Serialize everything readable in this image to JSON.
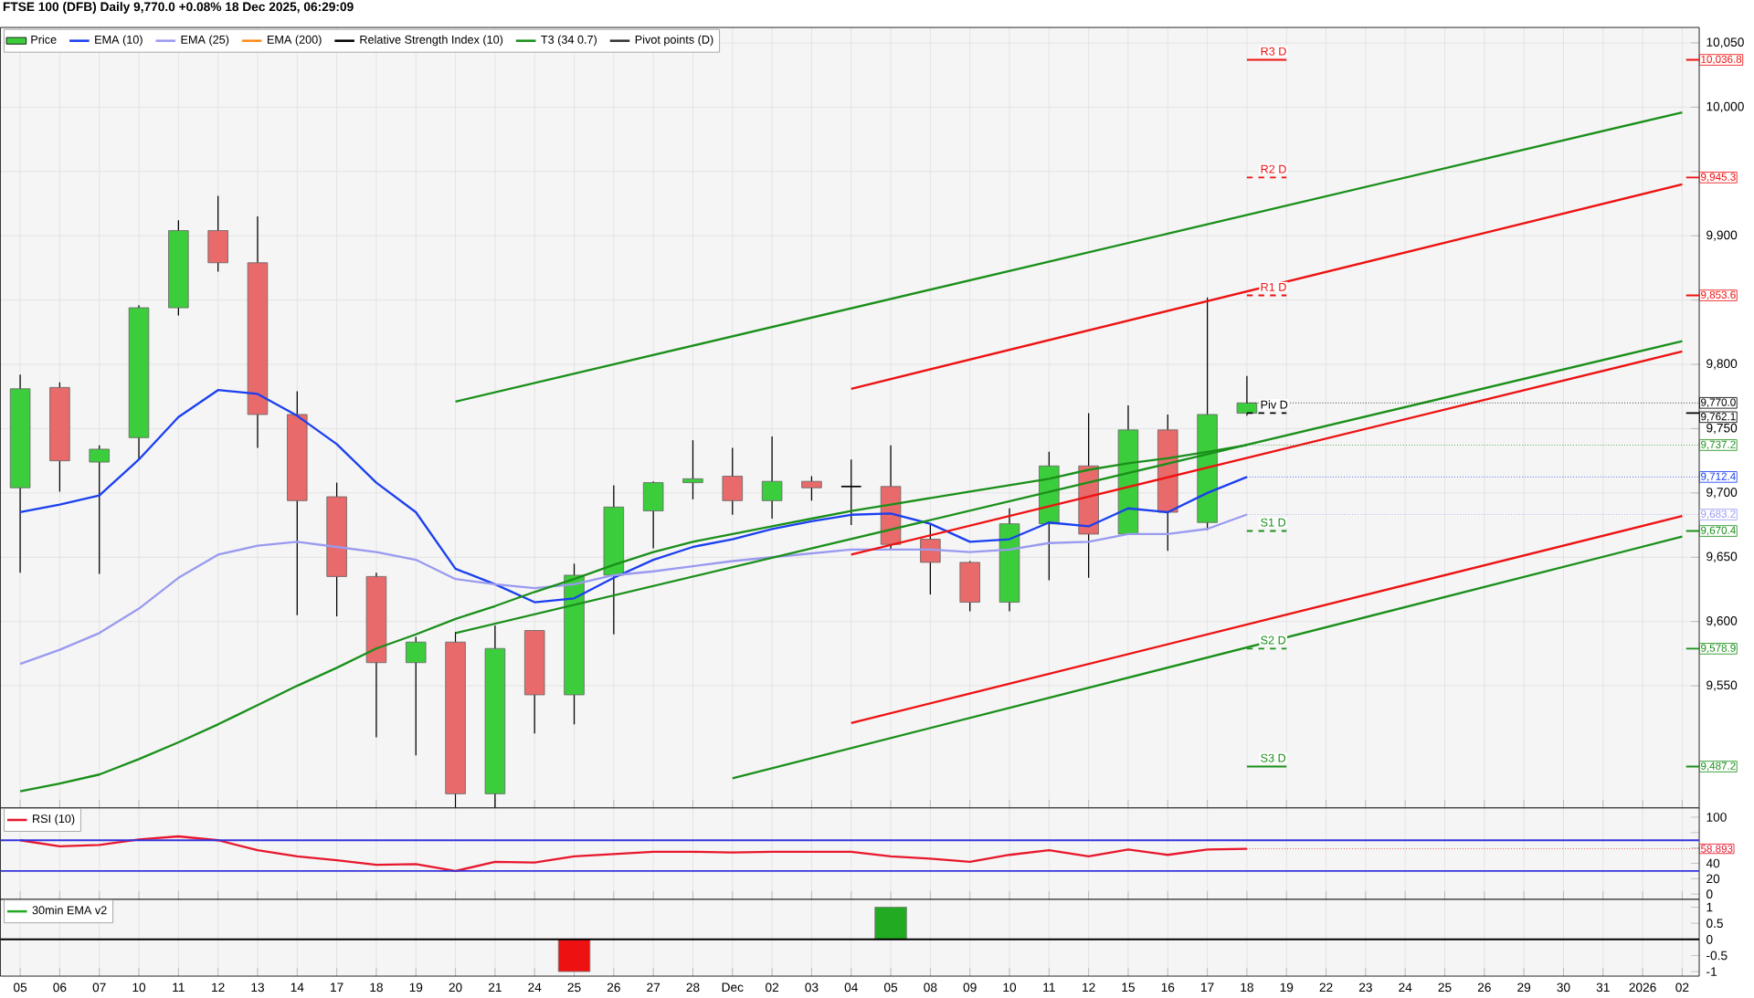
{
  "chart_data": [
    {
      "type": "candlestick",
      "title": "FTSE 100 (DFB) Daily 9,770.0 +0.08% 18 Dec 2025, 06:29:09",
      "categories": [
        null,
        null,
        null,
        null,
        null,
        null,
        null,
        null,
        null,
        null,
        null,
        null,
        null,
        null,
        null,
        null,
        null,
        null,
        null,
        null,
        null,
        null,
        null,
        null,
        null,
        null,
        null,
        null,
        null,
        null,
        null,
        null,
        null,
        null,
        null,
        null,
        null,
        null,
        null,
        null,
        null,
        null,
        null
      ],
      "ylim": [
        9455,
        10062
      ],
      "yticks": [
        {
          "value": 9550,
          "label": "9,550"
        },
        {
          "value": 9600,
          "label": "9,600"
        },
        {
          "value": 9650,
          "label": "9,650"
        },
        {
          "value": 9700,
          "label": "9,700"
        },
        {
          "value": 9750,
          "label": "9,750"
        },
        {
          "value": 9800,
          "label": "9,800"
        },
        {
          "value": 9850,
          "label": null
        },
        {
          "value": 9900,
          "label": "9,900"
        },
        {
          "value": 9950,
          "label": null
        },
        {
          "value": 10000,
          "label": "10,000"
        },
        {
          "value": 10050,
          "label": "10,050"
        }
      ],
      "grid": true,
      "legend": "top left",
      "tick_labels": "y",
      "series": [
        {
          "name": "Price",
          "type": "candlestick",
          "ohlc": [
            [
              9704,
              9792,
              9638,
              9781
            ],
            [
              9782,
              9786,
              9701,
              9725
            ],
            [
              9724,
              9737,
              9637,
              9734
            ],
            [
              9743,
              9846,
              9726,
              9844
            ],
            [
              9844,
              9912,
              9838,
              9904
            ],
            [
              9904,
              9931,
              9872,
              9879
            ],
            [
              9879,
              9915,
              9735,
              9761
            ],
            [
              9761,
              9779,
              9605,
              9694
            ],
            [
              9697,
              9708,
              9604,
              9635
            ],
            [
              9635,
              9638,
              9510,
              9568
            ],
            [
              9568,
              9588,
              9496,
              9584
            ],
            [
              9584,
              9592,
              9455,
              9466
            ],
            [
              9466,
              9597,
              9455,
              9579
            ],
            [
              9593,
              9593,
              9513,
              9543
            ],
            [
              9543,
              9645,
              9520,
              9636
            ],
            [
              9636,
              9706,
              9590,
              9689
            ],
            [
              9686,
              9709,
              9657,
              9708
            ],
            [
              9708,
              9741,
              9695,
              9711
            ],
            [
              9713,
              9735,
              9683,
              9694
            ],
            [
              9694,
              9744,
              9680,
              9709
            ],
            [
              9709,
              9713,
              9694,
              9704
            ],
            [
              9705,
              9726,
              9675,
              9705
            ],
            [
              9705,
              9737,
              9656,
              9660
            ],
            [
              9664,
              9676,
              9621,
              9646
            ],
            [
              9646,
              9647,
              9608,
              9615
            ],
            [
              9615,
              9688,
              9608,
              9676
            ],
            [
              9676,
              9732,
              9632,
              9721
            ],
            [
              9721,
              9762,
              9634,
              9668
            ],
            [
              9668,
              9768,
              9668,
              9749
            ],
            [
              9749,
              9761,
              9655,
              9685
            ],
            [
              9677,
              9852,
              9671,
              9761
            ],
            [
              9762,
              9791,
              9760,
              9770.0
            ],
            null,
            null,
            null,
            null,
            null,
            null,
            null,
            null,
            null,
            null,
            null
          ],
          "value_labels": [
            null,
            null,
            null,
            null,
            null,
            null,
            null,
            null,
            null,
            null,
            null,
            null,
            null,
            null,
            null,
            null,
            null,
            null,
            null,
            null,
            null,
            null,
            null,
            null,
            null,
            null,
            null,
            null,
            null,
            null,
            null,
            "9,770.0",
            null,
            null,
            null,
            null,
            null,
            null,
            null,
            null,
            null,
            null,
            null
          ]
        },
        {
          "name": "EMA (10)",
          "type": "line",
          "color": "#1a3ff0",
          "values": [
            9685,
            9691,
            9698,
            9726,
            9759,
            9780,
            9777,
            9760,
            9738,
            9708,
            9685,
            9641,
            9629,
            9615,
            9618,
            9634,
            9648,
            9658,
            9664,
            9672,
            9678,
            9683,
            9684,
            9676,
            9662,
            9664,
            9677,
            9674,
            9688,
            9685,
            9700,
            9712.4,
            null,
            null,
            null,
            null,
            null,
            null,
            null,
            null,
            null,
            null,
            null
          ],
          "value_labels": [
            null,
            null,
            null,
            null,
            null,
            null,
            null,
            null,
            null,
            null,
            null,
            null,
            null,
            null,
            null,
            null,
            null,
            null,
            null,
            null,
            null,
            null,
            null,
            null,
            null,
            null,
            null,
            null,
            null,
            null,
            null,
            "9,712.4",
            null,
            null,
            null,
            null,
            null,
            null,
            null,
            null,
            null,
            null,
            null
          ]
        },
        {
          "name": "EMA (25)",
          "type": "line",
          "color": "#9a9af0",
          "values": [
            9567,
            9578,
            9591,
            9610,
            9634,
            9652,
            9659,
            9662,
            9658,
            9654,
            9648,
            9633,
            9629,
            9626,
            9629,
            9636,
            9639,
            9643,
            9647,
            9650,
            9653,
            9656,
            9656,
            9656,
            9654,
            9656,
            9661,
            9662,
            9668,
            9668,
            9672,
            9683.2,
            null,
            null,
            null,
            null,
            null,
            null,
            null,
            null,
            null,
            null,
            null
          ],
          "value_labels": [
            null,
            null,
            null,
            null,
            null,
            null,
            null,
            null,
            null,
            null,
            null,
            null,
            null,
            null,
            null,
            null,
            null,
            null,
            null,
            null,
            null,
            null,
            null,
            null,
            null,
            null,
            null,
            null,
            null,
            null,
            null,
            "9,683.2",
            null,
            null,
            null,
            null,
            null,
            null,
            null,
            null,
            null,
            null,
            null
          ]
        },
        {
          "name": "EMA (200)",
          "type": "line",
          "color": "#ff8c1a",
          "values": [
            null,
            null,
            null,
            null,
            null,
            null,
            null,
            null,
            null,
            null,
            null,
            null,
            null,
            null,
            null,
            null,
            null,
            null,
            null,
            null,
            null,
            null,
            null,
            null,
            null,
            null,
            null,
            null,
            null,
            null,
            null,
            null,
            null,
            null,
            null,
            null,
            null,
            null,
            null,
            null,
            null,
            null,
            null
          ]
        },
        {
          "name": "Relative Strength Index (10)",
          "type": "line",
          "color": "#000000",
          "values": [
            null,
            null,
            null,
            null,
            null,
            null,
            null,
            null,
            null,
            null,
            null,
            null,
            null,
            null,
            null,
            null,
            null,
            null,
            null,
            null,
            null,
            null,
            null,
            null,
            null,
            null,
            null,
            null,
            null,
            null,
            null,
            null,
            null,
            null,
            null,
            null,
            null,
            null,
            null,
            null,
            null,
            null,
            null
          ]
        },
        {
          "name": "T3 (34 0.7)",
          "type": "line",
          "color": "#1a8f1a",
          "values": [
            9468,
            9474,
            9481,
            9493,
            9506,
            9520,
            9535,
            9550,
            9564,
            9579,
            9590,
            9602,
            9612,
            9623,
            9633,
            9644,
            9654,
            9662,
            9668,
            9674,
            9680,
            9686,
            9691,
            9696,
            9701,
            9706,
            9711,
            9718,
            9723,
            9727,
            9732,
            9737.2,
            null,
            null,
            null,
            null,
            null,
            null,
            null,
            null,
            null,
            null,
            null
          ],
          "value_labels": [
            null,
            null,
            null,
            null,
            null,
            null,
            null,
            null,
            null,
            null,
            null,
            null,
            null,
            null,
            null,
            null,
            null,
            null,
            null,
            null,
            null,
            null,
            null,
            null,
            null,
            null,
            null,
            null,
            null,
            null,
            null,
            "9,737.2",
            null,
            null,
            null,
            null,
            null,
            null,
            null,
            null,
            null,
            null,
            null
          ]
        },
        {
          "name": "Pivot points (D)",
          "type": "line",
          "color": "#333333",
          "values": [
            null,
            null,
            null,
            null,
            null,
            null,
            null,
            null,
            null,
            null,
            null,
            null,
            null,
            null,
            null,
            null,
            null,
            null,
            null,
            null,
            null,
            null,
            null,
            null,
            null,
            null,
            null,
            null,
            null,
            null,
            null,
            null,
            null,
            null,
            null,
            null,
            null,
            null,
            null,
            null,
            null,
            null,
            null
          ]
        },
        {
          "type": "line",
          "color": "#1a8f1a",
          "values": [
            null,
            null,
            null,
            null,
            null,
            null,
            null,
            null,
            null,
            null,
            null,
            9771,
            null,
            null,
            null,
            null,
            null,
            null,
            null,
            null,
            null,
            null,
            null,
            null,
            null,
            null,
            null,
            null,
            null,
            null,
            null,
            null,
            null,
            null,
            null,
            null,
            null,
            null,
            null,
            null,
            null,
            null,
            9996
          ]
        },
        {
          "type": "line",
          "color": "#1a8f1a",
          "values": [
            null,
            null,
            null,
            null,
            null,
            null,
            null,
            null,
            null,
            null,
            null,
            9591,
            null,
            null,
            null,
            null,
            null,
            null,
            null,
            null,
            null,
            null,
            null,
            null,
            null,
            null,
            null,
            null,
            null,
            null,
            null,
            null,
            null,
            null,
            null,
            null,
            null,
            null,
            null,
            null,
            null,
            null,
            9818
          ]
        },
        {
          "type": "line",
          "color": "#1a8f1a",
          "values": [
            null,
            null,
            null,
            null,
            null,
            null,
            null,
            null,
            null,
            null,
            null,
            null,
            null,
            null,
            null,
            null,
            null,
            null,
            9478,
            null,
            null,
            null,
            null,
            null,
            null,
            null,
            null,
            null,
            null,
            null,
            null,
            null,
            null,
            null,
            null,
            null,
            null,
            null,
            null,
            null,
            null,
            null,
            9666
          ]
        },
        {
          "type": "line",
          "color": "#ee1111",
          "values": [
            null,
            null,
            null,
            null,
            null,
            null,
            null,
            null,
            null,
            null,
            null,
            null,
            null,
            null,
            null,
            null,
            null,
            null,
            null,
            null,
            null,
            9781,
            null,
            null,
            null,
            null,
            null,
            null,
            null,
            null,
            null,
            null,
            null,
            null,
            null,
            null,
            null,
            null,
            null,
            null,
            null,
            null,
            9940
          ]
        },
        {
          "type": "line",
          "color": "#ee1111",
          "values": [
            null,
            null,
            null,
            null,
            null,
            null,
            null,
            null,
            null,
            null,
            null,
            null,
            null,
            null,
            null,
            null,
            null,
            null,
            null,
            null,
            null,
            9652,
            null,
            null,
            null,
            null,
            null,
            null,
            null,
            null,
            null,
            null,
            null,
            null,
            null,
            null,
            null,
            null,
            null,
            null,
            null,
            null,
            9810
          ]
        },
        {
          "type": "line",
          "color": "#ee1111",
          "values": [
            null,
            null,
            null,
            null,
            null,
            null,
            null,
            null,
            null,
            null,
            null,
            null,
            null,
            null,
            null,
            null,
            null,
            null,
            null,
            null,
            null,
            9521,
            null,
            null,
            null,
            null,
            null,
            null,
            null,
            null,
            null,
            null,
            null,
            null,
            null,
            null,
            null,
            null,
            null,
            null,
            null,
            null,
            9682
          ]
        }
      ],
      "ref_lines": [
        {
          "axis": "y",
          "value": 10036.8,
          "label": "R3 D",
          "color": "#ee1111",
          "line_style": "solid"
        },
        {
          "axis": "y",
          "value": 9945.3,
          "label": "R2 D",
          "color": "#ee1111",
          "line_style": "dashed"
        },
        {
          "axis": "y",
          "value": 9853.6,
          "label": "R1 D",
          "color": "#ee1111",
          "line_style": "dashed"
        },
        {
          "axis": "y",
          "value": 9762.1,
          "label": "Piv D",
          "color": "#000000",
          "line_style": "dashed"
        },
        {
          "axis": "y",
          "value": 9670.4,
          "label": "S1 D",
          "color": "#1a8f1a",
          "line_style": "dashed"
        },
        {
          "axis": "y",
          "value": 9578.9,
          "label": "S2 D",
          "color": "#1a8f1a",
          "line_style": "dashed"
        },
        {
          "axis": "y",
          "value": 9487.2,
          "label": "S3 D",
          "color": "#1a8f1a",
          "line_style": "solid"
        },
        {
          "axis": "y",
          "value": 10036.8,
          "label": "10,036.8",
          "color": "#ee1111"
        },
        {
          "axis": "y",
          "value": 9945.3,
          "label": "9,945.3",
          "color": "#ee1111"
        },
        {
          "axis": "y",
          "value": 9853.6,
          "label": "9,853.6",
          "color": "#ee1111"
        },
        {
          "axis": "y",
          "value": 9762.1,
          "label": "9,762.1",
          "color": "#000000"
        },
        {
          "axis": "y",
          "value": 9670.4,
          "label": "9,670.4",
          "color": "#1a8f1a"
        },
        {
          "axis": "y",
          "value": 9578.9,
          "label": "9,578.9",
          "color": "#1a8f1a"
        },
        {
          "axis": "y",
          "value": 9487.2,
          "label": "9,487.2",
          "color": "#1a8f1a"
        }
      ]
    },
    {
      "type": "line",
      "categories": [
        null,
        null,
        null,
        null,
        null,
        null,
        null,
        null,
        null,
        null,
        null,
        null,
        null,
        null,
        null,
        null,
        null,
        null,
        null,
        null,
        null,
        null,
        null,
        null,
        null,
        null,
        null,
        null,
        null,
        null,
        null,
        null,
        null,
        null,
        null,
        null,
        null,
        null,
        null,
        null,
        null,
        null,
        null
      ],
      "ylim": [
        -7,
        112
      ],
      "yticks": [
        0,
        20,
        40,
        {
          "value": 60,
          "label": null
        },
        {
          "value": 80,
          "label": null
        },
        100
      ],
      "grid": "x",
      "legend": "top left",
      "tick_labels": "y",
      "series": [
        {
          "name": "RSI (10)",
          "color": "#e8172d",
          "values": [
            70,
            62,
            64,
            71,
            75,
            70,
            57,
            49,
            44,
            38,
            39,
            30,
            42,
            41,
            49,
            52,
            55,
            55,
            54,
            55,
            55,
            55,
            49,
            46,
            42,
            51,
            57,
            49,
            58,
            51,
            58,
            58.893,
            null,
            null,
            null,
            null,
            null,
            null,
            null,
            null,
            null,
            null,
            null
          ],
          "value_labels": [
            null,
            null,
            null,
            null,
            null,
            null,
            null,
            null,
            null,
            null,
            null,
            null,
            null,
            null,
            null,
            null,
            null,
            null,
            null,
            null,
            null,
            null,
            null,
            null,
            null,
            null,
            null,
            null,
            null,
            null,
            null,
            "58.893",
            null,
            null,
            null,
            null,
            null,
            null,
            null,
            null,
            null,
            null,
            null
          ]
        }
      ],
      "ref_lines": [
        {
          "axis": "y",
          "value": 70,
          "color": "#3333dd",
          "line_style": "solid"
        },
        {
          "axis": "y",
          "value": 30,
          "color": "#3333dd",
          "line_style": "solid"
        }
      ]
    },
    {
      "type": "bar",
      "categories": [
        "05",
        "06",
        "07",
        "10",
        "11",
        "12",
        "13",
        "14",
        "17",
        "18",
        "19",
        "20",
        "21",
        "24",
        "25",
        "26",
        "27",
        "28",
        "Dec",
        "02",
        "03",
        "04",
        "05",
        "08",
        "09",
        "10",
        "11",
        "12",
        "15",
        "16",
        "17",
        "18",
        "19",
        "22",
        "23",
        "24",
        "25",
        "26",
        "29",
        "30",
        "31",
        "2026",
        "02"
      ],
      "ylim": [
        -1.14,
        1.24
      ],
      "yticks": [
        -1,
        -0.5,
        0,
        0.5,
        1
      ],
      "grid": "x",
      "legend": "top left",
      "series": [
        {
          "name": "30min EMA v2",
          "color": "#22aa22",
          "colors": [
            null,
            null,
            null,
            null,
            null,
            null,
            null,
            null,
            null,
            null,
            null,
            null,
            null,
            null,
            "#ee1111",
            null,
            null,
            null,
            null,
            null,
            null,
            null,
            "#22aa22",
            null,
            null,
            null,
            null,
            null,
            null,
            null,
            null,
            null,
            null,
            null,
            null,
            null,
            null,
            null,
            null,
            null,
            null,
            null,
            null
          ],
          "values": [
            null,
            null,
            null,
            null,
            null,
            null,
            null,
            null,
            null,
            null,
            null,
            null,
            null,
            null,
            -1,
            null,
            null,
            null,
            null,
            null,
            null,
            null,
            1,
            null,
            null,
            null,
            null,
            null,
            null,
            null,
            null,
            null,
            null,
            null,
            null,
            null,
            null,
            null,
            null,
            null,
            null,
            null,
            null
          ]
        }
      ],
      "ref_lines": [
        {
          "axis": "y",
          "value": 0,
          "color": "#000000",
          "line_style": "solid"
        }
      ]
    }
  ]
}
